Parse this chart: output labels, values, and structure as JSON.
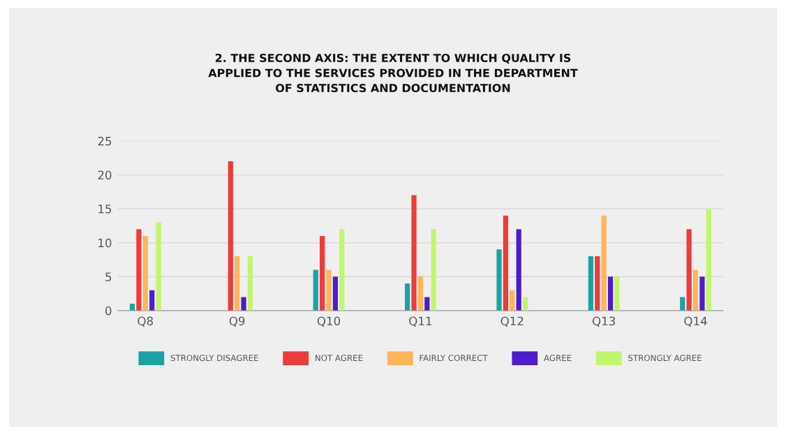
{
  "chart_data": {
    "type": "bar",
    "title": "2. THE SECOND AXIS: THE EXTENT TO WHICH QUALITY IS\nAPPLIED TO THE SERVICES PROVIDED IN THE DEPARTMENT\nOF STATISTICS AND DOCUMENTATION",
    "categories": [
      "Q8",
      "Q9",
      "Q10",
      "Q11",
      "Q12",
      "Q13",
      "Q14"
    ],
    "series": [
      {
        "name": "STRONGLY DISAGREE",
        "color": "#1aa3a3",
        "values": [
          1,
          0,
          6,
          4,
          9,
          8,
          2
        ]
      },
      {
        "name": "NOT AGREE",
        "color": "#ee3b3b",
        "values": [
          12,
          22,
          11,
          17,
          14,
          8,
          12
        ]
      },
      {
        "name": "FAIRLY CORRECT",
        "color": "#ffb557",
        "values": [
          11,
          8,
          6,
          5,
          3,
          14,
          6
        ]
      },
      {
        "name": "AGREE",
        "color": "#4d1ccc",
        "values": [
          3,
          2,
          5,
          2,
          12,
          5,
          5
        ]
      },
      {
        "name": "STRONGLY AGREE",
        "color": "#c2f56e",
        "values": [
          13,
          8,
          12,
          12,
          2,
          5,
          15
        ]
      }
    ],
    "ylim": [
      0,
      25
    ],
    "yticks": [
      0,
      5,
      10,
      15,
      20,
      25
    ],
    "grid": "y",
    "legend": "bottom"
  }
}
